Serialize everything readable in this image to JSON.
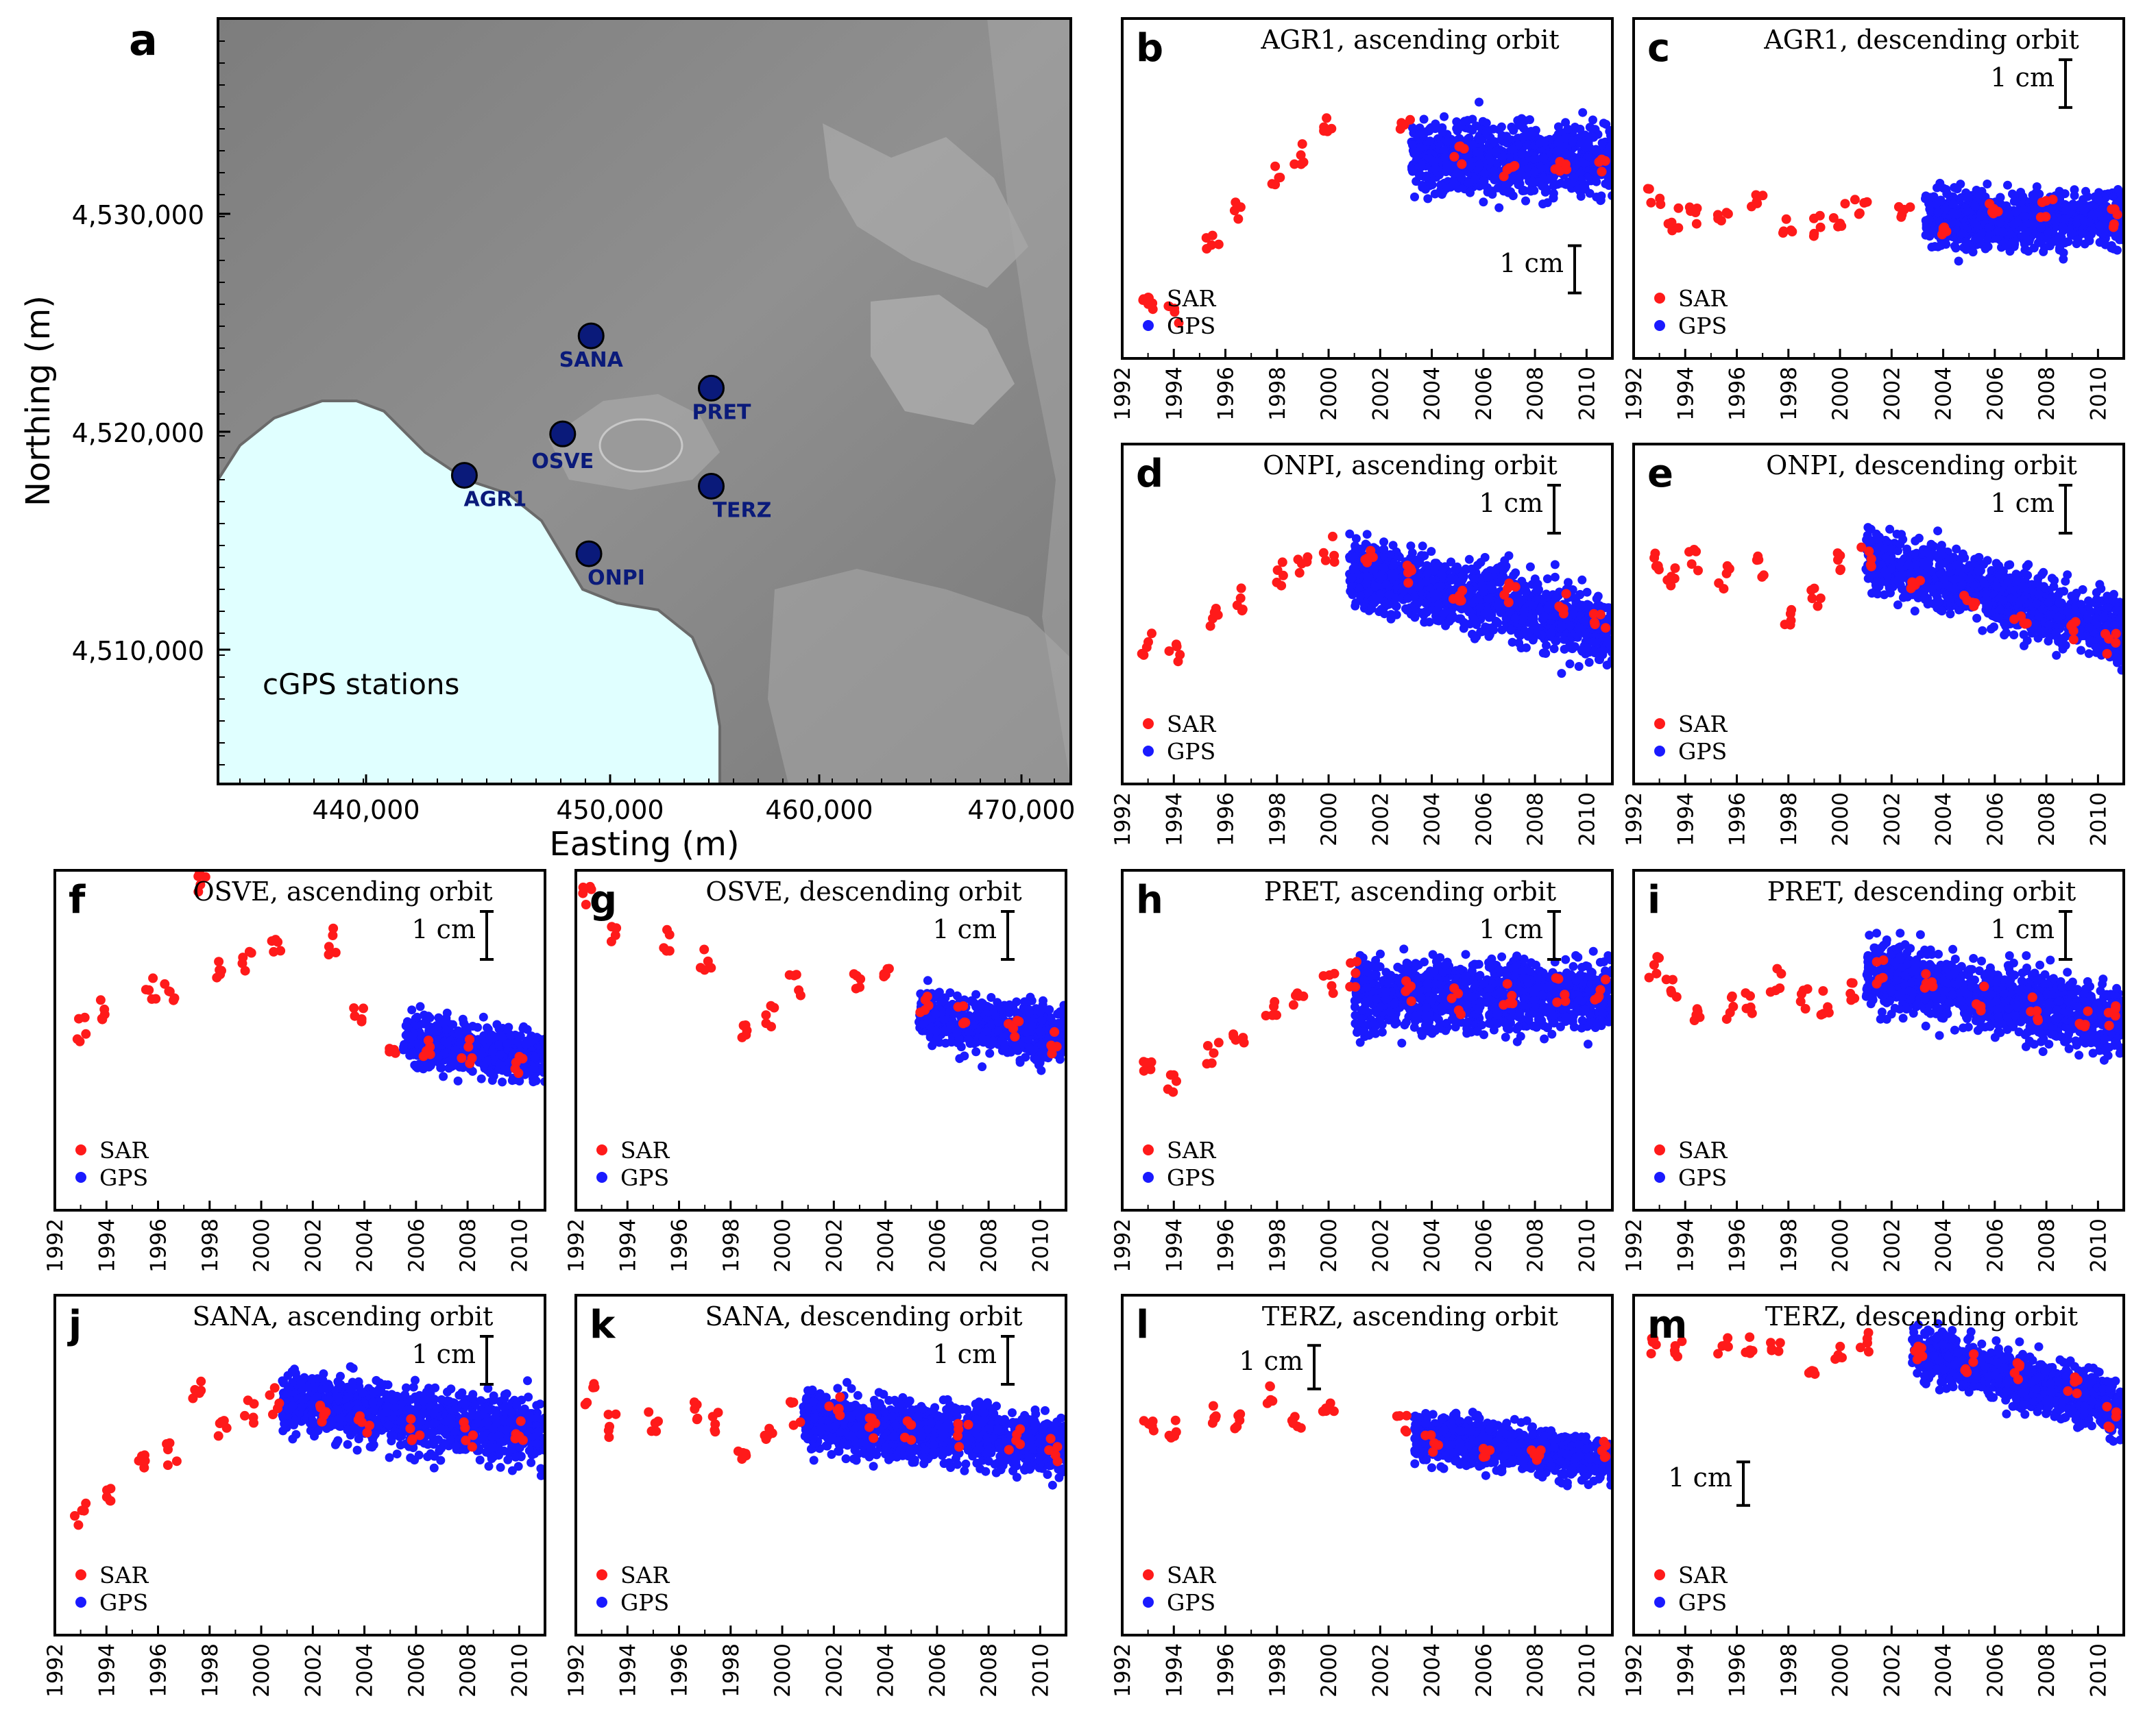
{
  "colors": {
    "sar": "#ff1a1a",
    "gps": "#1a1aff",
    "sea": "#e0ffff",
    "station": "#0a1a7a",
    "land": "#8c8c8c"
  },
  "map": {
    "letter": "a",
    "xlabel": "Easting (m)",
    "ylabel": "Northing (m)",
    "xticks": [
      "440,000",
      "450,000",
      "460,000",
      "470,000"
    ],
    "yticks": [
      "4,510,000",
      "4,520,000",
      "4,530,000"
    ],
    "caption": "cGPS stations",
    "stations": [
      {
        "name": "SANA",
        "easting": 450300,
        "northing": 4524400
      },
      {
        "name": "PRET",
        "easting": 455800,
        "northing": 4522000
      },
      {
        "name": "OSVE",
        "easting": 449000,
        "northing": 4519900
      },
      {
        "name": "AGR1",
        "easting": 444500,
        "northing": 4518000
      },
      {
        "name": "TERZ",
        "easting": 455800,
        "northing": 4517500
      },
      {
        "name": "ONPI",
        "easting": 450200,
        "northing": 4514400
      }
    ]
  },
  "chart_data": [
    {
      "type": "scatter",
      "letter": "b",
      "title": "AGR1, ascending orbit",
      "scale_label": "1 cm",
      "scale_pos": "lower-right",
      "legend": [
        "SAR",
        "GPS"
      ],
      "x_ticks": [
        "1992",
        "1994",
        "1996",
        "1998",
        "2000",
        "2002",
        "2004",
        "2006",
        "2008",
        "2010"
      ],
      "xlim": [
        1992,
        2011
      ],
      "ylim": [
        -2.8,
        4.4
      ],
      "series": [
        {
          "name": "SAR",
          "x": [
            1993,
            1994,
            1995.5,
            1996.5,
            1998,
            1998.8,
            2000,
            2003,
            2005,
            2007,
            2009,
            2010.5
          ],
          "y": [
            -1.6,
            -1.9,
            -0.4,
            0.3,
            1.1,
            1.5,
            2.2,
            2.1,
            1.5,
            1.3,
            1.4,
            1.2
          ]
        },
        {
          "name": "GPS",
          "x": [
            2003.2,
            2011
          ],
          "y": [
            1.5,
            1.4
          ],
          "spread": 1.3
        }
      ]
    },
    {
      "type": "scatter",
      "letter": "c",
      "title": "AGR1, descending orbit",
      "scale_label": "1 cm",
      "scale_pos": "top-right",
      "legend": [
        "SAR",
        "GPS"
      ],
      "x_ticks": [
        "1992",
        "1994",
        "1996",
        "1998",
        "2000",
        "2002",
        "2004",
        "2006",
        "2008",
        "2010"
      ],
      "xlim": [
        1992,
        2011
      ],
      "ylim": [
        -3.4,
        3.7
      ],
      "series": [
        {
          "name": "SAR",
          "x": [
            1992.8,
            1993.5,
            1994.3,
            1995.5,
            1996.8,
            1998,
            1999,
            2000,
            2000.8,
            2002.5,
            2004,
            2006,
            2008,
            2010.5
          ],
          "y": [
            -0.1,
            -0.5,
            -0.4,
            -0.3,
            0,
            -0.6,
            -0.6,
            -0.4,
            -0.2,
            -0.4,
            -0.6,
            -0.3,
            -0.3,
            -0.5
          ]
        },
        {
          "name": "GPS",
          "x": [
            2003.3,
            2011
          ],
          "y": [
            -0.5,
            -0.5
          ],
          "spread": 1.0
        }
      ]
    },
    {
      "type": "scatter",
      "letter": "d",
      "title": "ONPI, ascending orbit",
      "scale_label": "1 cm",
      "scale_pos": "top-right",
      "legend": [
        "SAR",
        "GPS"
      ],
      "x_ticks": [
        "1992",
        "1994",
        "1996",
        "1998",
        "2000",
        "2002",
        "2004",
        "2006",
        "2008",
        "2010"
      ],
      "xlim": [
        1992,
        2011
      ],
      "ylim": [
        -3.4,
        2.4
      ],
      "series": [
        {
          "name": "SAR",
          "x": [
            1993,
            1994,
            1995.5,
            1996.5,
            1998,
            1999,
            2000,
            2001.5,
            2003,
            2005,
            2007,
            2009,
            2010.5
          ],
          "y": [
            -1.0,
            -1.2,
            -0.6,
            -0.3,
            0.2,
            0.4,
            0.6,
            0.5,
            0.2,
            -0.1,
            -0.2,
            -0.4,
            -0.6
          ]
        },
        {
          "name": "GPS",
          "x": [
            2000.8,
            2011
          ],
          "y": [
            0.3,
            -0.8
          ],
          "spread": 1.0
        }
      ]
    },
    {
      "type": "scatter",
      "letter": "e",
      "title": "ONPI, descending orbit",
      "scale_label": "1 cm",
      "scale_pos": "top-right",
      "legend": [
        "SAR",
        "GPS"
      ],
      "x_ticks": [
        "1992",
        "1994",
        "1996",
        "1998",
        "2000",
        "2002",
        "2004",
        "2006",
        "2008",
        "2010"
      ],
      "xlim": [
        1992,
        2011
      ],
      "ylim": [
        -3.5,
        2.8
      ],
      "series": [
        {
          "name": "SAR",
          "x": [
            1992.8,
            1993.5,
            1994.3,
            1995.5,
            1996.8,
            1998,
            1999,
            2000,
            2001,
            2003,
            2005,
            2007,
            2009,
            2010.5
          ],
          "y": [
            0.6,
            0.4,
            0.7,
            0.3,
            0.5,
            -0.3,
            0,
            0.6,
            0.7,
            0.3,
            -0.1,
            -0.3,
            -0.6,
            -0.9
          ]
        },
        {
          "name": "GPS",
          "x": [
            2001,
            2011
          ],
          "y": [
            0.7,
            -0.7
          ],
          "spread": 1.0
        }
      ]
    },
    {
      "type": "scatter",
      "letter": "f",
      "title": "OSVE, ascending orbit",
      "scale_label": "1 cm",
      "scale_pos": "top-right",
      "legend": [
        "SAR",
        "GPS"
      ],
      "x_ticks": [
        "1992",
        "1994",
        "1996",
        "1998",
        "2000",
        "2002",
        "2004",
        "2006",
        "2008",
        "2010"
      ],
      "xlim": [
        1992,
        2011
      ],
      "ylim": [
        -3.6,
        2.6
      ],
      "series": [
        {
          "name": "SAR",
          "x": [
            1993,
            1994,
            1995.7,
            1996.5,
            1997.6,
            1998.5,
            1999.5,
            2000.5,
            2002.8,
            2003.8,
            2005,
            2006.5,
            2008,
            2010
          ],
          "y": [
            -0.3,
            0,
            0.5,
            0.3,
            2.4,
            0.7,
            0.9,
            1.3,
            1.3,
            0,
            -0.5,
            -0.6,
            -0.7,
            -0.9
          ]
        },
        {
          "name": "GPS",
          "x": [
            2005.5,
            2011
          ],
          "y": [
            -0.5,
            -0.8
          ],
          "spread": 0.8
        }
      ]
    },
    {
      "type": "scatter",
      "letter": "g",
      "title": "OSVE, descending orbit",
      "scale_label": "1 cm",
      "scale_pos": "top-right",
      "legend": [
        "SAR",
        "GPS"
      ],
      "x_ticks": [
        "1992",
        "1994",
        "1996",
        "1998",
        "2000",
        "2002",
        "2004",
        "2006",
        "2008",
        "2010"
      ],
      "xlim": [
        1992,
        2011
      ],
      "ylim": [
        -3.7,
        2.8
      ],
      "series": [
        {
          "name": "SAR",
          "x": [
            1992.5,
            1993.5,
            1995.5,
            1997,
            1998.5,
            1999.5,
            2000.5,
            2002.8,
            2004,
            2005.5,
            2007,
            2009,
            2010.5
          ],
          "y": [
            2.3,
            1.6,
            1.5,
            1.1,
            -0.2,
            0,
            0.6,
            0.7,
            1.0,
            0.2,
            0,
            -0.2,
            -0.5
          ]
        },
        {
          "name": "GPS",
          "x": [
            2005.3,
            2011
          ],
          "y": [
            0,
            -0.4
          ],
          "spread": 0.9
        }
      ]
    },
    {
      "type": "scatter",
      "letter": "h",
      "title": "PRET, ascending orbit",
      "scale_label": "1 cm",
      "scale_pos": "top-right",
      "legend": [
        "SAR",
        "GPS"
      ],
      "x_ticks": [
        "1992",
        "1994",
        "1996",
        "1998",
        "2000",
        "2002",
        "2004",
        "2006",
        "2008",
        "2010"
      ],
      "xlim": [
        1992,
        2011
      ],
      "ylim": [
        -3.8,
        2.4
      ],
      "series": [
        {
          "name": "SAR",
          "x": [
            1993,
            1994,
            1995.5,
            1996.5,
            1997.8,
            1998.8,
            2000,
            2001,
            2003,
            2005,
            2007,
            2009,
            2010.5
          ],
          "y": [
            -1.3,
            -1.4,
            -0.9,
            -0.7,
            -0.2,
            0,
            0.4,
            0.5,
            0.2,
            0,
            0.1,
            0.2,
            0.2
          ]
        },
        {
          "name": "GPS",
          "x": [
            2001,
            2011
          ],
          "y": [
            0.1,
            0.1
          ],
          "spread": 1.1
        }
      ]
    },
    {
      "type": "scatter",
      "letter": "i",
      "title": "PRET, descending orbit",
      "scale_label": "1 cm",
      "scale_pos": "top-right",
      "legend": [
        "SAR",
        "GPS"
      ],
      "x_ticks": [
        "1992",
        "1994",
        "1996",
        "1998",
        "2000",
        "2002",
        "2004",
        "2006",
        "2008",
        "2010"
      ],
      "xlim": [
        1992,
        2011
      ],
      "ylim": [
        -3.6,
        2.8
      ],
      "series": [
        {
          "name": "SAR",
          "x": [
            1992.8,
            1993.5,
            1994.5,
            1995.8,
            1996.5,
            1997.5,
            1998.5,
            1999.5,
            2000.5,
            2001.5,
            2003.5,
            2005.5,
            2007.5,
            2009.5,
            2010.5
          ],
          "y": [
            1.0,
            0.5,
            0.1,
            0.2,
            0.3,
            0.7,
            0.4,
            0.3,
            0.5,
            0.9,
            0.6,
            0.4,
            0.2,
            0.1,
            0.0
          ]
        },
        {
          "name": "GPS",
          "x": [
            2001,
            2011
          ],
          "y": [
            0.9,
            -0.1
          ],
          "spread": 1.1
        }
      ]
    },
    {
      "type": "scatter",
      "letter": "j",
      "title": "SANA, ascending orbit",
      "scale_label": "1 cm",
      "scale_pos": "top-right",
      "legend": [
        "SAR",
        "GPS"
      ],
      "x_ticks": [
        "1992",
        "1994",
        "1996",
        "1998",
        "2000",
        "2002",
        "2004",
        "2006",
        "2008",
        "2010"
      ],
      "xlim": [
        1992,
        2011
      ],
      "ylim": [
        -3.8,
        2.3
      ],
      "series": [
        {
          "name": "SAR",
          "x": [
            1993,
            1994,
            1995.5,
            1996.5,
            1997.6,
            1998.5,
            1999.5,
            2000.5,
            2002.5,
            2004,
            2006,
            2008,
            2010
          ],
          "y": [
            -1.6,
            -1.4,
            -0.7,
            -0.6,
            0.6,
            -0.1,
            0.2,
            0.4,
            0.2,
            0,
            -0.1,
            -0.2,
            -0.2
          ]
        },
        {
          "name": "GPS",
          "x": [
            2000.8,
            2011
          ],
          "y": [
            0.4,
            -0.2
          ],
          "spread": 1.0
        }
      ]
    },
    {
      "type": "scatter",
      "letter": "k",
      "title": "SANA, descending orbit",
      "scale_label": "1 cm",
      "scale_pos": "top-right",
      "legend": [
        "SAR",
        "GPS"
      ],
      "x_ticks": [
        "1992",
        "1994",
        "1996",
        "1998",
        "2000",
        "2002",
        "2004",
        "2006",
        "2008",
        "2010"
      ],
      "xlim": [
        1992,
        2011
      ],
      "ylim": [
        -3.7,
        2.6
      ],
      "series": [
        {
          "name": "SAR",
          "x": [
            1992.5,
            1993.5,
            1995,
            1996.5,
            1997.5,
            1998.5,
            1999.5,
            2000.5,
            2002,
            2003.5,
            2005,
            2007,
            2009,
            2010.5
          ],
          "y": [
            0.8,
            0.2,
            0.2,
            0.5,
            0.3,
            -0.2,
            0.1,
            0.4,
            0.5,
            0.2,
            0.1,
            0,
            -0.1,
            -0.3
          ]
        },
        {
          "name": "GPS",
          "x": [
            2000.8,
            2011
          ],
          "y": [
            0.3,
            -0.2
          ],
          "spread": 1.0
        }
      ]
    },
    {
      "type": "scatter",
      "letter": "l",
      "title": "TERZ, ascending orbit",
      "scale_label": "1 cm",
      "scale_pos": "top-left",
      "legend": [
        "SAR",
        "GPS"
      ],
      "x_ticks": [
        "1992",
        "1994",
        "1996",
        "1998",
        "2000",
        "2002",
        "2004",
        "2006",
        "2008",
        "2010"
      ],
      "xlim": [
        1992,
        2011
      ],
      "ylim": [
        -4.2,
        3.6
      ],
      "series": [
        {
          "name": "SAR",
          "x": [
            1993,
            1994,
            1995.5,
            1996.5,
            1997.7,
            1998.8,
            2000,
            2002.8,
            2004,
            2006,
            2008,
            2010.5
          ],
          "y": [
            0.6,
            0.5,
            0.9,
            0.7,
            1.3,
            0.8,
            1.0,
            0.7,
            0.2,
            0.1,
            0,
            0
          ]
        },
        {
          "name": "GPS",
          "x": [
            2003.3,
            2011
          ],
          "y": [
            0.4,
            -0.2
          ],
          "spread": 0.9
        }
      ]
    },
    {
      "type": "scatter",
      "letter": "m",
      "title": "TERZ, descending orbit",
      "scale_label": "1 cm",
      "scale_pos": "middle-left",
      "legend": [
        "SAR",
        "GPS"
      ],
      "x_ticks": [
        "1992",
        "1994",
        "1996",
        "1998",
        "2000",
        "2002",
        "2004",
        "2006",
        "2008",
        "2010"
      ],
      "xlim": [
        1992,
        2011
      ],
      "ylim": [
        -4.2,
        3.6
      ],
      "series": [
        {
          "name": "SAR",
          "x": [
            1992.8,
            1993.8,
            1995.5,
            1996.5,
            1997.5,
            1998.8,
            2000,
            2001,
            2003,
            2005,
            2007,
            2009,
            2010.5
          ],
          "y": [
            2.5,
            2.3,
            2.4,
            2.5,
            2.4,
            2.0,
            2.3,
            2.5,
            2.3,
            2.0,
            1.8,
            1.5,
            0.8
          ]
        },
        {
          "name": "GPS",
          "x": [
            2002.8,
            2011
          ],
          "y": [
            2.3,
            1.0
          ],
          "spread": 1.1
        }
      ]
    }
  ]
}
